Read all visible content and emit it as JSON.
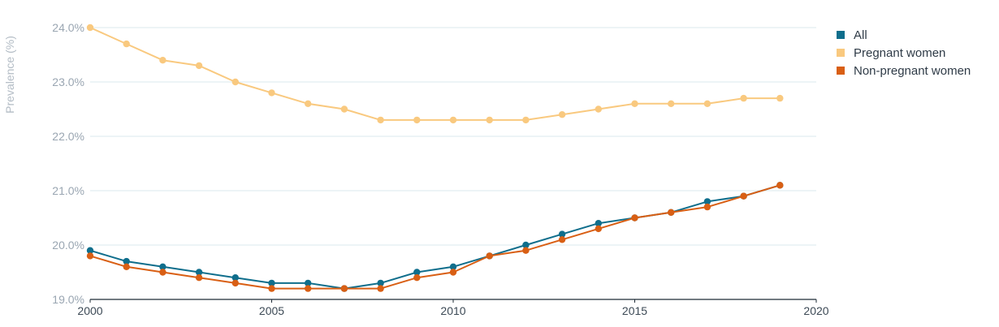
{
  "chart_data": {
    "type": "line",
    "title": "",
    "xlabel": "",
    "ylabel": "Prevalence (%)",
    "ylim": [
      19.0,
      24.0
    ],
    "xlim": [
      2000,
      2020
    ],
    "y_ticks": [
      "19.0%",
      "20.0%",
      "21.0%",
      "22.0%",
      "23.0%",
      "24.0%"
    ],
    "x_ticks": [
      "2000",
      "2005",
      "2010",
      "2015",
      "2020"
    ],
    "grid": "horizontal",
    "legend_position": "top-right",
    "x": [
      2000,
      2001,
      2002,
      2003,
      2004,
      2005,
      2006,
      2007,
      2008,
      2009,
      2010,
      2011,
      2012,
      2013,
      2014,
      2015,
      2016,
      2017,
      2018,
      2019
    ],
    "series": [
      {
        "name": "All",
        "color": "#0f6e8c",
        "values": [
          19.9,
          19.7,
          19.6,
          19.5,
          19.4,
          19.3,
          19.3,
          19.2,
          19.3,
          19.5,
          19.6,
          19.8,
          20.0,
          20.2,
          20.4,
          20.5,
          20.6,
          20.8,
          20.9,
          21.1
        ]
      },
      {
        "name": "Pregnant women",
        "color": "#f9c97f",
        "values": [
          24.0,
          23.7,
          23.4,
          23.3,
          23.0,
          22.8,
          22.6,
          22.5,
          22.3,
          22.3,
          22.3,
          22.3,
          22.3,
          22.4,
          22.5,
          22.6,
          22.6,
          22.6,
          22.7,
          22.7
        ]
      },
      {
        "name": "Non-pregnant women",
        "color": "#d95f14",
        "values": [
          19.8,
          19.6,
          19.5,
          19.4,
          19.3,
          19.2,
          19.2,
          19.2,
          19.2,
          19.4,
          19.5,
          19.8,
          19.9,
          20.1,
          20.3,
          20.5,
          20.6,
          20.7,
          20.9,
          21.1
        ]
      }
    ]
  }
}
